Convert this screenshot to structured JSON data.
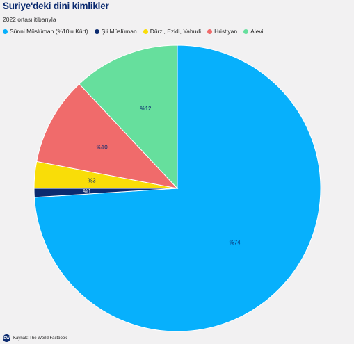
{
  "header": {
    "title": "Suriye'deki dini kimlikler",
    "subtitle": "2022 ortası itibarıyla"
  },
  "footer": {
    "logo": "DW",
    "source": "Kaynak: The World Factbook"
  },
  "chart_data": {
    "type": "pie",
    "title": "Suriye'deki dini kimlikler",
    "subtitle": "2022 ortası itibarıyla",
    "legend_position": "top-left",
    "start_angle_deg": 0,
    "direction": "clockwise",
    "slices": [
      {
        "name": "Sünni Müslüman (%10'u Kürt)",
        "value": 74,
        "label": "%74",
        "color": "#07b0fc"
      },
      {
        "name": "Şii Müslüman",
        "value": 1,
        "label": "%1",
        "color": "#0b2a6f"
      },
      {
        "name": "Dürzi, Ezidi, Yahudi",
        "value": 3,
        "label": "%3",
        "color": "#f9dd08"
      },
      {
        "name": "Hristiyan",
        "value": 10,
        "label": "%10",
        "color": "#f06b6b"
      },
      {
        "name": "Alevi",
        "value": 12,
        "label": "%12",
        "color": "#66df9d"
      }
    ]
  }
}
